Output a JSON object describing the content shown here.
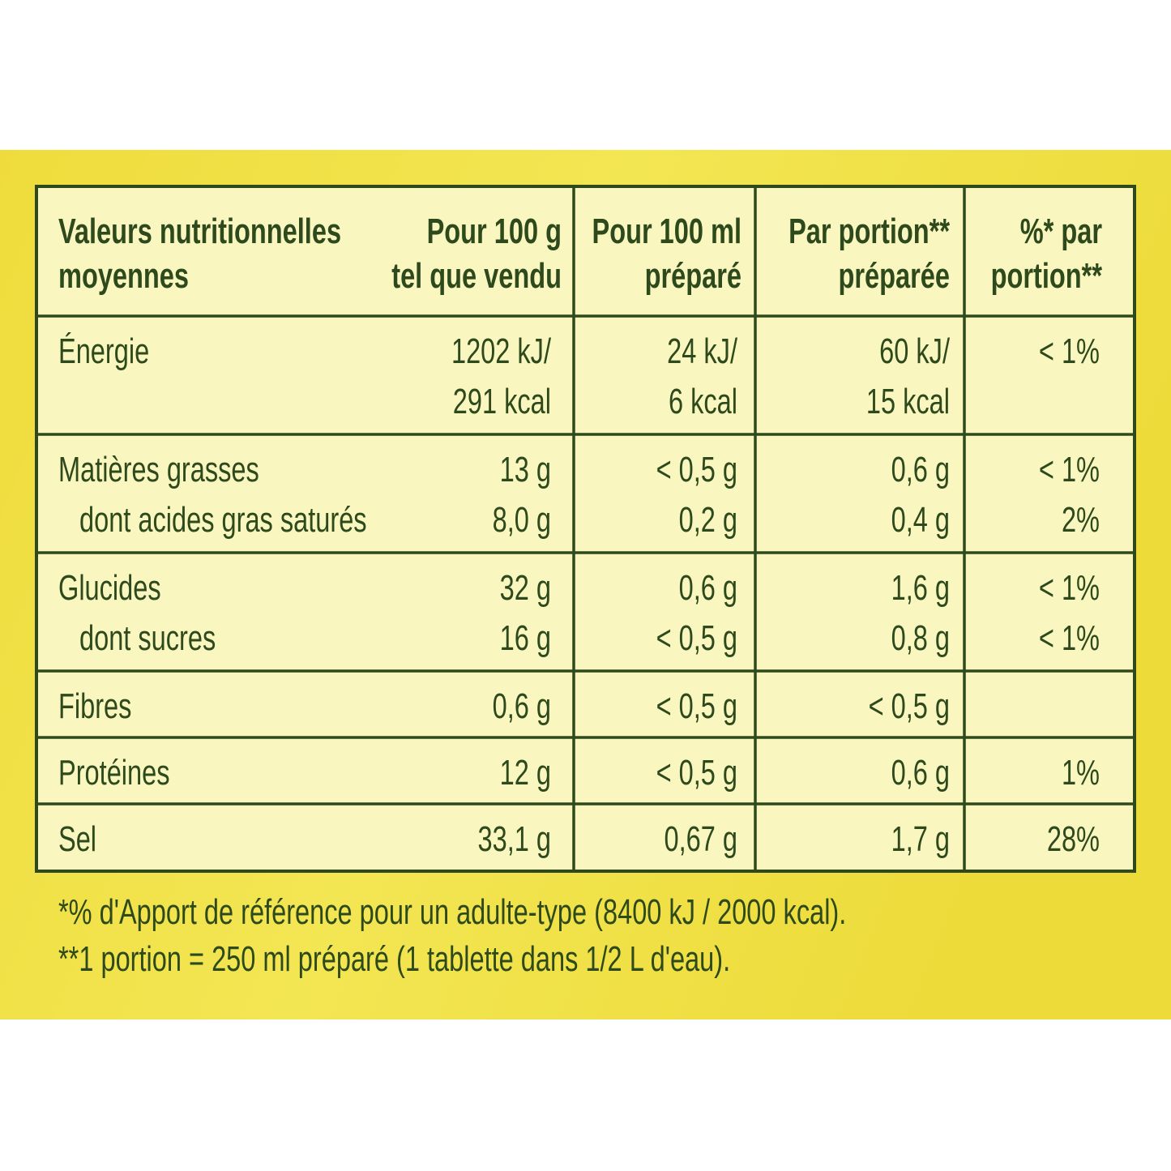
{
  "table": {
    "header": [
      [
        "Valeurs nutritionnelles",
        "moyennes"
      ],
      [
        "Pour 100 g",
        "tel que vendu"
      ],
      [
        "Pour 100 ml",
        "préparé"
      ],
      [
        "Par  portion**",
        "préparée"
      ],
      [
        "%* par",
        "portion**"
      ]
    ],
    "groups": [
      {
        "rows": [
          {
            "label": "Énergie",
            "values": [
              [
                "1202 kJ/",
                "291 kcal"
              ],
              [
                "24 kJ/",
                "6 kcal"
              ],
              [
                "60 kJ/",
                "15 kcal"
              ],
              [
                "< 1%"
              ]
            ]
          }
        ]
      },
      {
        "rows": [
          {
            "label": "Matières grasses",
            "values": [
              "13 g",
              "< 0,5 g",
              "0,6 g",
              "< 1%"
            ]
          },
          {
            "label": "dont acides gras saturés",
            "indent": true,
            "values": [
              "8,0 g",
              "0,2 g",
              "0,4 g",
              "2%"
            ]
          }
        ]
      },
      {
        "rows": [
          {
            "label": "Glucides",
            "values": [
              "32 g",
              "0,6 g",
              "1,6 g",
              "< 1%"
            ]
          },
          {
            "label": "dont sucres",
            "indent": true,
            "values": [
              "16 g",
              "< 0,5 g",
              "0,8 g",
              "< 1%"
            ]
          }
        ]
      },
      {
        "rows": [
          {
            "label": "Fibres",
            "values": [
              "0,6 g",
              "< 0,5 g",
              "< 0,5 g",
              null
            ]
          }
        ]
      },
      {
        "rows": [
          {
            "label": "Protéines",
            "values": [
              "12 g",
              "< 0,5 g",
              "0,6 g",
              "1%"
            ]
          }
        ]
      },
      {
        "rows": [
          {
            "label": "Sel",
            "values": [
              "33,1 g",
              "0,67 g",
              "1,7 g",
              "28%"
            ]
          }
        ]
      }
    ],
    "notes": [
      "*% d'Apport de référence pour un adulte-type (8400 kJ / 2000 kcal).",
      "**1 portion = 250 ml préparé (1 tablette dans 1/2 L d'eau)."
    ]
  }
}
